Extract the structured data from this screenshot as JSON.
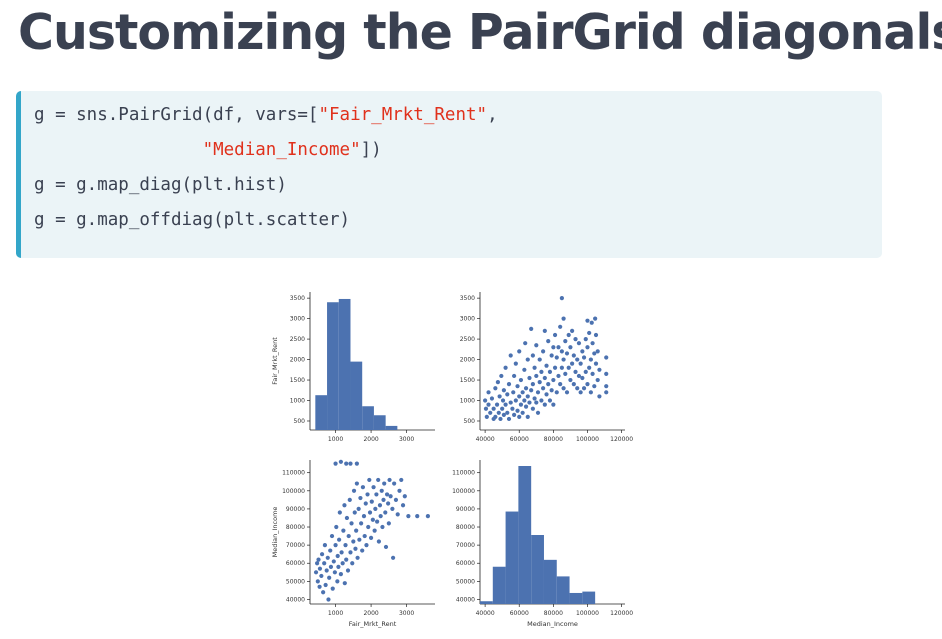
{
  "title": "Customizing the PairGrid diagonals",
  "code": {
    "line1": {
      "pre": "g = sns.PairGrid(df, vars=[",
      "str": "\"Fair_Mrkt_Rent\"",
      "post": ","
    },
    "line2": {
      "pre": "                ",
      "str": "\"Median_Income\"",
      "post": "])"
    },
    "line3": "g = g.map_diag(plt.hist)",
    "line4": "g = g.map_offdiag(plt.scatter)"
  },
  "colors": {
    "mark": "#4c72b0",
    "code_string": "#e0311c",
    "accent_bar": "#33a6c9",
    "code_bg": "#ebf4f7",
    "text": "#3a4151"
  },
  "chart_data": [
    {
      "type": "bar",
      "panel": "top-left",
      "ylabel": "Fair_Mrkt_Rent",
      "bins": [
        {
          "x0": 430,
          "x1": 760,
          "count": 1130
        },
        {
          "x0": 760,
          "x1": 1090,
          "count": 3400
        },
        {
          "x0": 1090,
          "x1": 1420,
          "count": 3480
        },
        {
          "x0": 1420,
          "x1": 1750,
          "count": 1950
        },
        {
          "x0": 1750,
          "x1": 2080,
          "count": 860
        },
        {
          "x0": 2080,
          "x1": 2410,
          "count": 640
        },
        {
          "x0": 2410,
          "x1": 2740,
          "count": 380
        },
        {
          "x0": 2740,
          "x1": 3070,
          "count": 260
        },
        {
          "x0": 3070,
          "x1": 3400,
          "count": 0
        },
        {
          "x0": 3400,
          "x1": 3730,
          "count": 0
        }
      ],
      "xticks": [
        "1000",
        "2000",
        "3000"
      ],
      "yticks": [
        "500",
        "1000",
        "1500",
        "2000",
        "2500",
        "3000",
        "3500"
      ]
    },
    {
      "type": "scatter",
      "panel": "top-right",
      "xlim": [
        37000,
        122000
      ],
      "ylim": [
        430,
        3650
      ],
      "xticks": [
        "40000",
        "60000",
        "80000",
        "100000",
        "120000"
      ],
      "yticks": [
        "500",
        "1000",
        "1500",
        "2000",
        "2500",
        "3000",
        "3500"
      ],
      "points": [
        [
          40000,
          1000
        ],
        [
          40500,
          800
        ],
        [
          41000,
          600
        ],
        [
          42000,
          900
        ],
        [
          42000,
          1200
        ],
        [
          43000,
          700
        ],
        [
          44000,
          1050
        ],
        [
          45000,
          550
        ],
        [
          45000,
          800
        ],
        [
          46000,
          1300
        ],
        [
          46000,
          600
        ],
        [
          47000,
          900
        ],
        [
          47500,
          1450
        ],
        [
          48000,
          700
        ],
        [
          48500,
          1100
        ],
        [
          49000,
          550
        ],
        [
          49500,
          1600
        ],
        [
          50000,
          800
        ],
        [
          50500,
          1000
        ],
        [
          51000,
          1250
        ],
        [
          51000,
          650
        ],
        [
          52000,
          900
        ],
        [
          52000,
          1800
        ],
        [
          53000,
          700
        ],
        [
          53000,
          1150
        ],
        [
          54000,
          1400
        ],
        [
          54000,
          550
        ],
        [
          55000,
          950
        ],
        [
          55000,
          2100
        ],
        [
          56000,
          800
        ],
        [
          56500,
          1200
        ],
        [
          57000,
          1600
        ],
        [
          57000,
          650
        ],
        [
          58000,
          1000
        ],
        [
          58000,
          1900
        ],
        [
          59000,
          750
        ],
        [
          59000,
          1350
        ],
        [
          60000,
          1100
        ],
        [
          60000,
          2200
        ],
        [
          60000,
          600
        ],
        [
          61000,
          900
        ],
        [
          61000,
          1500
        ],
        [
          62000,
          1200
        ],
        [
          62000,
          700
        ],
        [
          63000,
          1000
        ],
        [
          63000,
          1750
        ],
        [
          63500,
          2400
        ],
        [
          64000,
          850
        ],
        [
          64000,
          1300
        ],
        [
          65000,
          1100
        ],
        [
          65000,
          2000
        ],
        [
          65000,
          600
        ],
        [
          66000,
          950
        ],
        [
          66000,
          1550
        ],
        [
          67000,
          1250
        ],
        [
          67000,
          2750
        ],
        [
          68000,
          800
        ],
        [
          68000,
          1400
        ],
        [
          68000,
          2100
        ],
        [
          69000,
          1050
        ],
        [
          69000,
          1800
        ],
        [
          70000,
          950
        ],
        [
          70000,
          1600
        ],
        [
          70000,
          2350
        ],
        [
          71000,
          1200
        ],
        [
          71000,
          700
        ],
        [
          72000,
          1450
        ],
        [
          72000,
          2000
        ],
        [
          73000,
          1000
        ],
        [
          73000,
          1700
        ],
        [
          74000,
          1300
        ],
        [
          74000,
          2200
        ],
        [
          75000,
          900
        ],
        [
          75000,
          1550
        ],
        [
          75000,
          2700
        ],
        [
          76000,
          1150
        ],
        [
          76000,
          1850
        ],
        [
          77000,
          1400
        ],
        [
          77000,
          2450
        ],
        [
          78000,
          1000
        ],
        [
          78000,
          1700
        ],
        [
          79000,
          1250
        ],
        [
          79000,
          2100
        ],
        [
          80000,
          1500
        ],
        [
          80000,
          2300
        ],
        [
          80000,
          900
        ],
        [
          81000,
          1800
        ],
        [
          81000,
          2600
        ],
        [
          82000,
          1200
        ],
        [
          82000,
          2050
        ],
        [
          83000,
          1600
        ],
        [
          83000,
          2300
        ],
        [
          84000,
          1400
        ],
        [
          84000,
          2800
        ],
        [
          85000,
          1800
        ],
        [
          85000,
          2200
        ],
        [
          85000,
          3500
        ],
        [
          86000,
          1300
        ],
        [
          86000,
          2000
        ],
        [
          86000,
          3000
        ],
        [
          87000,
          1650
        ],
        [
          87000,
          2450
        ],
        [
          88000,
          1200
        ],
        [
          88000,
          2150
        ],
        [
          89000,
          1800
        ],
        [
          89000,
          2600
        ],
        [
          90000,
          1500
        ],
        [
          90000,
          2300
        ],
        [
          91000,
          1900
        ],
        [
          91000,
          2700
        ],
        [
          92000,
          1400
        ],
        [
          92000,
          2100
        ],
        [
          93000,
          1700
        ],
        [
          93000,
          2500
        ],
        [
          94000,
          1300
        ],
        [
          94000,
          2000
        ],
        [
          95000,
          1600
        ],
        [
          95000,
          2400
        ],
        [
          96000,
          1200
        ],
        [
          96000,
          1900
        ],
        [
          97000,
          1550
        ],
        [
          97000,
          2200
        ],
        [
          98000,
          1300
        ],
        [
          98000,
          2050
        ],
        [
          99000,
          1700
        ],
        [
          99000,
          2500
        ],
        [
          100000,
          1400
        ],
        [
          100000,
          2300
        ],
        [
          100000,
          2950
        ],
        [
          101000,
          1800
        ],
        [
          101000,
          2650
        ],
        [
          102000,
          1200
        ],
        [
          102000,
          2000
        ],
        [
          102500,
          2900
        ],
        [
          103000,
          1650
        ],
        [
          103000,
          2400
        ],
        [
          104000,
          1350
        ],
        [
          104000,
          2150
        ],
        [
          104500,
          3000
        ],
        [
          105000,
          1900
        ],
        [
          105000,
          2600
        ],
        [
          106000,
          1500
        ],
        [
          106000,
          2200
        ],
        [
          107000,
          1100
        ],
        [
          107000,
          1750
        ],
        [
          111000,
          2050
        ],
        [
          111000,
          1650
        ],
        [
          111000,
          1350
        ],
        [
          111000,
          1200
        ]
      ]
    },
    {
      "type": "scatter",
      "panel": "bottom-left",
      "xlabel": "Fair_Mrkt_Rent",
      "ylabel": "Median_Income",
      "xlim": [
        280,
        3800
      ],
      "ylim": [
        37500,
        117000
      ],
      "xticks": [
        "1000",
        "2000",
        "3000"
      ],
      "yticks": [
        "40000",
        "50000",
        "60000",
        "70000",
        "80000",
        "90000",
        "100000",
        "110000"
      ],
      "points": [
        [
          450,
          55000
        ],
        [
          480,
          60000
        ],
        [
          500,
          50000
        ],
        [
          520,
          62000
        ],
        [
          550,
          47000
        ],
        [
          560,
          57000
        ],
        [
          600,
          53000
        ],
        [
          620,
          65000
        ],
        [
          650,
          44000
        ],
        [
          680,
          60000
        ],
        [
          700,
          70000
        ],
        [
          720,
          48000
        ],
        [
          750,
          56000
        ],
        [
          780,
          63000
        ],
        [
          800,
          40000
        ],
        [
          820,
          52000
        ],
        [
          850,
          67000
        ],
        [
          870,
          58000
        ],
        [
          900,
          75000
        ],
        [
          920,
          46000
        ],
        [
          950,
          61000
        ],
        [
          980,
          55000
        ],
        [
          1000,
          70000
        ],
        [
          1020,
          80000
        ],
        [
          1050,
          50000
        ],
        [
          1060,
          64000
        ],
        [
          1080,
          58000
        ],
        [
          1100,
          73000
        ],
        [
          1120,
          88000
        ],
        [
          1150,
          54000
        ],
        [
          1170,
          66000
        ],
        [
          1200,
          60000
        ],
        [
          1220,
          78000
        ],
        [
          1250,
          92000
        ],
        [
          1260,
          49000
        ],
        [
          1280,
          70000
        ],
        [
          1300,
          62000
        ],
        [
          1320,
          85000
        ],
        [
          1350,
          56000
        ],
        [
          1370,
          75000
        ],
        [
          1400,
          95000
        ],
        [
          1420,
          66000
        ],
        [
          1450,
          82000
        ],
        [
          1470,
          60000
        ],
        [
          1500,
          72000
        ],
        [
          1520,
          100000
        ],
        [
          1540,
          88000
        ],
        [
          1560,
          68000
        ],
        [
          1580,
          78000
        ],
        [
          1600,
          104000
        ],
        [
          1620,
          63000
        ],
        [
          1650,
          90000
        ],
        [
          1670,
          73000
        ],
        [
          1700,
          96000
        ],
        [
          1720,
          82000
        ],
        [
          1750,
          67000
        ],
        [
          1770,
          102000
        ],
        [
          1800,
          86000
        ],
        [
          1820,
          75000
        ],
        [
          1850,
          93000
        ],
        [
          1870,
          70000
        ],
        [
          1900,
          98000
        ],
        [
          1920,
          80000
        ],
        [
          1950,
          106000
        ],
        [
          1970,
          88000
        ],
        [
          2000,
          74000
        ],
        [
          2020,
          94000
        ],
        [
          2050,
          84000
        ],
        [
          2070,
          102000
        ],
        [
          2100,
          78000
        ],
        [
          2120,
          90000
        ],
        [
          2150,
          98000
        ],
        [
          2170,
          83000
        ],
        [
          2200,
          106000
        ],
        [
          2220,
          72000
        ],
        [
          2250,
          92000
        ],
        [
          2270,
          86000
        ],
        [
          2300,
          100000
        ],
        [
          2320,
          80000
        ],
        [
          2350,
          95000
        ],
        [
          2370,
          104000
        ],
        [
          2400,
          88000
        ],
        [
          2420,
          69000
        ],
        [
          2450,
          98000
        ],
        [
          2480,
          93000
        ],
        [
          2500,
          82000
        ],
        [
          2520,
          106000
        ],
        [
          2550,
          97000
        ],
        [
          2600,
          90000
        ],
        [
          2620,
          63000
        ],
        [
          2650,
          104000
        ],
        [
          2700,
          95000
        ],
        [
          2750,
          87000
        ],
        [
          2800,
          100000
        ],
        [
          2850,
          106000
        ],
        [
          2900,
          92000
        ],
        [
          2950,
          97000
        ],
        [
          3050,
          86000
        ],
        [
          3300,
          86000
        ],
        [
          3600,
          86000
        ],
        [
          1000,
          115000
        ],
        [
          1150,
          116000
        ],
        [
          1300,
          115000
        ],
        [
          1420,
          115000
        ],
        [
          1600,
          115000
        ]
      ]
    },
    {
      "type": "bar",
      "panel": "bottom-right",
      "xlabel": "Median_Income",
      "bins": [
        {
          "x0": 37000,
          "x1": 44500,
          "count": 0.02
        },
        {
          "x0": 44500,
          "x1": 52000,
          "count": 0.27
        },
        {
          "x0": 52000,
          "x1": 59500,
          "count": 0.67
        },
        {
          "x0": 59500,
          "x1": 67000,
          "count": 1.0
        },
        {
          "x0": 67000,
          "x1": 74500,
          "count": 0.5
        },
        {
          "x0": 74500,
          "x1": 82000,
          "count": 0.32
        },
        {
          "x0": 82000,
          "x1": 89500,
          "count": 0.2
        },
        {
          "x0": 89500,
          "x1": 97000,
          "count": 0.08
        },
        {
          "x0": 97000,
          "x1": 104500,
          "count": 0.09
        }
      ],
      "xticks": [
        "40000",
        "60000",
        "80000",
        "100000",
        "120000"
      ],
      "yticks": [
        "40000",
        "50000",
        "60000",
        "70000",
        "80000",
        "90000",
        "100000",
        "110000"
      ]
    }
  ]
}
